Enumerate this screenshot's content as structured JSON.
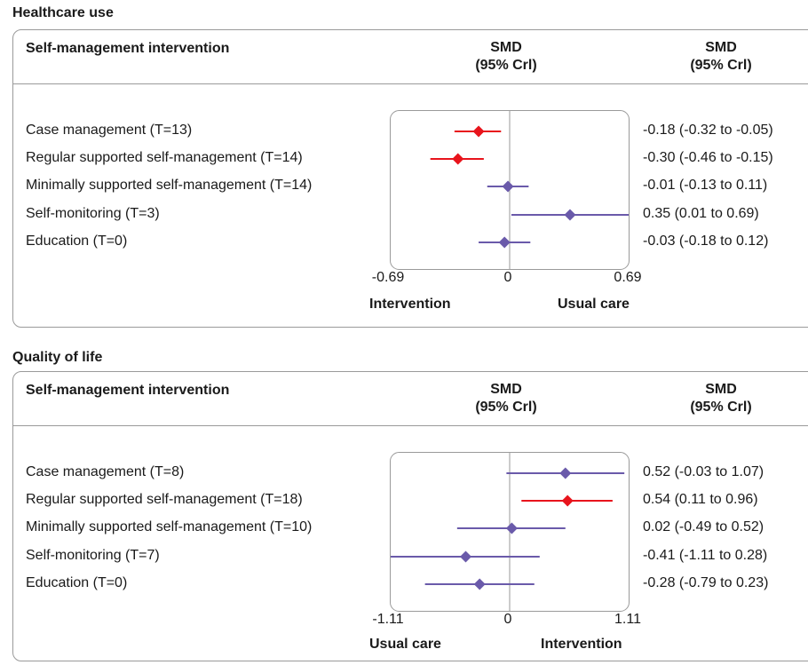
{
  "headers": {
    "col1": "Self-management intervention",
    "col2_line1": "SMD",
    "col2_line2": "(95% Crl)",
    "col3_line1": "SMD",
    "col3_line2": "(95% Crl)"
  },
  "colors": {
    "significant": "#e8141c",
    "nonsignificant": "#6a5aaa"
  },
  "chart_data": [
    {
      "type": "forest",
      "title": "Healthcare use",
      "xlim": [
        -0.69,
        0.69
      ],
      "ticks": [
        "-0.69",
        "0",
        "0.69"
      ],
      "left_label": "Intervention",
      "right_label": "Usual care",
      "rows": [
        {
          "label": "Case management (T=13)",
          "est": -0.18,
          "lo": -0.32,
          "hi": -0.05,
          "text": "-0.18 (-0.32 to -0.05)",
          "sig": true
        },
        {
          "label": "Regular supported self-management (T=14)",
          "est": -0.3,
          "lo": -0.46,
          "hi": -0.15,
          "text": "-0.30 (-0.46 to -0.15)",
          "sig": true
        },
        {
          "label": "Minimally supported self-management (T=14)",
          "est": -0.01,
          "lo": -0.13,
          "hi": 0.11,
          "text": "-0.01 (-0.13 to 0.11)",
          "sig": false
        },
        {
          "label": "Self-monitoring (T=3)",
          "est": 0.35,
          "lo": 0.01,
          "hi": 0.69,
          "text": "0.35 (0.01 to 0.69)",
          "sig": false
        },
        {
          "label": "Education (T=0)",
          "est": -0.03,
          "lo": -0.18,
          "hi": 0.12,
          "text": "-0.03 (-0.18 to 0.12)",
          "sig": false
        }
      ]
    },
    {
      "type": "forest",
      "title": "Quality of life",
      "xlim": [
        -1.11,
        1.11
      ],
      "ticks": [
        "-1.11",
        "0",
        "1.11"
      ],
      "left_label": "Usual care",
      "right_label": "Intervention",
      "rows": [
        {
          "label": "Case management (T=8)",
          "est": 0.52,
          "lo": -0.03,
          "hi": 1.07,
          "text": "0.52 (-0.03 to 1.07)",
          "sig": false
        },
        {
          "label": "Regular supported self-management (T=18)",
          "est": 0.54,
          "lo": 0.11,
          "hi": 0.96,
          "text": "0.54 (0.11 to 0.96)",
          "sig": true
        },
        {
          "label": "Minimally supported self-management (T=10)",
          "est": 0.02,
          "lo": -0.49,
          "hi": 0.52,
          "text": "0.02 (-0.49 to 0.52)",
          "sig": false
        },
        {
          "label": "Self-monitoring (T=7)",
          "est": -0.41,
          "lo": -1.11,
          "hi": 0.28,
          "text": "-0.41 (-1.11 to 0.28)",
          "sig": false
        },
        {
          "label": "Education (T=0)",
          "est": -0.28,
          "lo": -0.79,
          "hi": 0.23,
          "text": "-0.28 (-0.79 to 0.23)",
          "sig": false
        }
      ]
    }
  ]
}
